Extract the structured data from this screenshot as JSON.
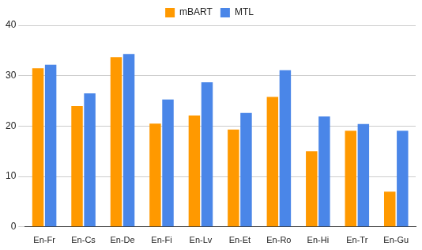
{
  "chart_data": {
    "type": "bar",
    "categories": [
      "En-Fr",
      "En-Cs",
      "En-De",
      "En-Fi",
      "En-Lv",
      "En-Et",
      "En-Ro",
      "En-Hi",
      "En-Tr",
      "En-Gu"
    ],
    "series": [
      {
        "name": "mBART",
        "color": "#ff9900",
        "values": [
          31.5,
          24,
          33.7,
          20.5,
          22.1,
          19.3,
          25.8,
          15,
          19.1,
          7
        ]
      },
      {
        "name": "MTL",
        "color": "#4a86e8",
        "values": [
          32.2,
          26.5,
          34.3,
          25.3,
          28.7,
          22.6,
          31.1,
          21.9,
          20.4,
          19.1
        ]
      }
    ],
    "ylim": [
      0,
      40
    ],
    "yticks": [
      0,
      10,
      20,
      30,
      40
    ],
    "grid": true,
    "legend": "top"
  }
}
